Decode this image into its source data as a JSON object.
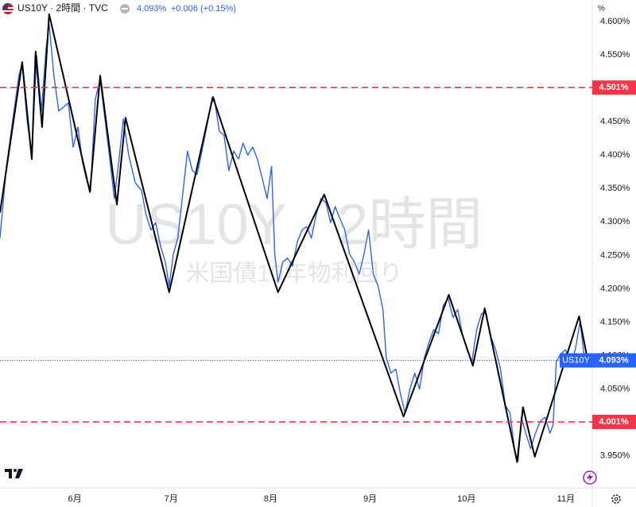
{
  "header": {
    "symbol": "US10Y · 2時間 · TVC",
    "change": "+0.006 (+0.15%)"
  },
  "watermark": {
    "title": "US10Y · 2時間",
    "subtitle": "米国債10年物利回り"
  },
  "chart_data": {
    "type": "line",
    "y_unit": "%",
    "xlim": [
      128.7,
      313.2
    ],
    "ylim": [
      3.907,
      4.632
    ],
    "grid": false,
    "xticks": [
      {
        "value": 152,
        "label": "6月"
      },
      {
        "value": 182,
        "label": "7月"
      },
      {
        "value": 213,
        "label": "8月"
      },
      {
        "value": 244,
        "label": "9月"
      },
      {
        "value": 274,
        "label": "10月"
      },
      {
        "value": 305,
        "label": "11月"
      }
    ],
    "yticks": [
      {
        "value": 4.6,
        "label": "4.600%"
      },
      {
        "value": 4.55,
        "label": "4.550%"
      },
      {
        "value": 4.45,
        "label": "4.450%"
      },
      {
        "value": 4.4,
        "label": "4.400%"
      },
      {
        "value": 4.35,
        "label": "4.350%"
      },
      {
        "value": 4.3,
        "label": "4.300%"
      },
      {
        "value": 4.25,
        "label": "4.250%"
      },
      {
        "value": 4.2,
        "label": "4.200%"
      },
      {
        "value": 4.15,
        "label": "4.150%"
      },
      {
        "value": 4.1,
        "label": "4.100%"
      },
      {
        "value": 4.05,
        "label": "4.050%"
      },
      {
        "value": 3.95,
        "label": "3.950%"
      }
    ],
    "series": [
      {
        "name": "US10Y",
        "color": "#2962ff",
        "x": [
          128.7,
          130.7,
          132.7,
          134.6,
          135.6,
          137.1,
          138.6,
          140.1,
          141.6,
          143.1,
          144.0,
          145.5,
          147.0,
          148.5,
          150.0,
          151.5,
          153.0,
          154.4,
          155.9,
          156.9,
          158.4,
          159.9,
          161.4,
          162.9,
          164.3,
          165.8,
          167.1,
          168.8,
          170.8,
          172.8,
          174.2,
          175.7,
          177.2,
          178.7,
          180.2,
          181.4,
          182.7,
          184.1,
          185.6,
          187.1,
          188.6,
          190.1,
          191.6,
          193.1,
          194.5,
          195.5,
          197.0,
          198.5,
          200.0,
          201.5,
          203.0,
          204.4,
          205.9,
          207.4,
          208.9,
          210.4,
          211.9,
          213.3,
          214.3,
          215.3,
          216.8,
          218.3,
          219.8,
          221.3,
          222.8,
          224.2,
          225.7,
          227.2,
          228.7,
          230.2,
          231.7,
          233.1,
          234.6,
          236.1,
          237.6,
          239.1,
          240.6,
          242.1,
          243.5,
          245.0,
          246.5,
          248.0,
          249.0,
          250.5,
          252.0,
          253.4,
          254.9,
          256.4,
          257.9,
          259.4,
          260.9,
          262.4,
          263.8,
          265.3,
          266.8,
          268.3,
          269.8,
          271.3,
          272.7,
          274.2,
          275.7,
          277.2,
          278.7,
          280.2,
          281.7,
          283.1,
          284.6,
          286.1,
          287.6,
          289.1,
          290.1,
          291.1,
          292.5,
          294.0,
          295.5,
          297.0,
          298.5,
          300.0,
          301.0,
          302.0,
          303.4,
          304.9,
          306.4,
          307.9,
          309.4,
          310.9,
          311.9
        ],
        "values": [
          4.276,
          4.383,
          4.454,
          4.519,
          4.537,
          4.454,
          4.4,
          4.549,
          4.466,
          4.561,
          4.596,
          4.519,
          4.466,
          4.472,
          4.478,
          4.412,
          4.442,
          4.389,
          4.359,
          4.347,
          4.484,
          4.513,
          4.454,
          4.394,
          4.335,
          4.394,
          4.454,
          4.4,
          4.359,
          4.347,
          4.311,
          4.288,
          4.299,
          4.264,
          4.24,
          4.204,
          4.252,
          4.276,
          4.341,
          4.406,
          4.377,
          4.371,
          4.406,
          4.442,
          4.478,
          4.484,
          4.436,
          4.43,
          4.377,
          4.406,
          4.394,
          4.418,
          4.4,
          4.412,
          4.394,
          4.365,
          4.335,
          4.383,
          4.252,
          4.21,
          4.24,
          4.246,
          4.234,
          4.27,
          4.288,
          4.293,
          4.276,
          4.311,
          4.335,
          4.329,
          4.299,
          4.323,
          4.305,
          4.288,
          4.252,
          4.24,
          4.222,
          4.252,
          4.288,
          4.222,
          4.204,
          4.169,
          4.097,
          4.074,
          4.08,
          4.044,
          4.014,
          4.05,
          4.074,
          4.05,
          4.097,
          4.121,
          4.139,
          4.133,
          4.175,
          4.186,
          4.157,
          4.169,
          4.133,
          4.109,
          4.091,
          4.139,
          4.163,
          4.163,
          4.127,
          4.109,
          4.08,
          4.026,
          4.014,
          3.955,
          3.943,
          4.008,
          3.984,
          3.961,
          3.984,
          4.002,
          4.008,
          3.984,
          3.996,
          4.091,
          4.103,
          4.109,
          4.085,
          4.109,
          4.151,
          4.091,
          4.093
        ]
      },
      {
        "color": "#000000",
        "x": [
          128.7,
          135.6,
          138.6,
          139.8,
          141.8,
          144.0,
          156.7,
          159.9,
          165.1,
          167.8,
          181.4,
          195.0,
          215.3,
          229.7,
          254.4,
          268.5,
          276.0,
          279.7,
          289.8,
          291.6,
          295.3,
          309.1,
          311.4
        ],
        "values": [
          4.314,
          4.539,
          4.394,
          4.555,
          4.442,
          4.611,
          4.345,
          4.519,
          4.326,
          4.456,
          4.195,
          4.487,
          4.195,
          4.341,
          4.009,
          4.191,
          4.085,
          4.171,
          3.941,
          4.023,
          3.949,
          4.159,
          4.103
        ]
      }
    ],
    "hlines": [
      {
        "value": 4.501,
        "label": "4.501%",
        "color": "#f23645"
      },
      {
        "value": 4.001,
        "label": "4.001%",
        "color": "#f23645"
      }
    ],
    "last_value": {
      "value": 4.093,
      "label": "4.093%",
      "color": "#2962ff"
    }
  }
}
